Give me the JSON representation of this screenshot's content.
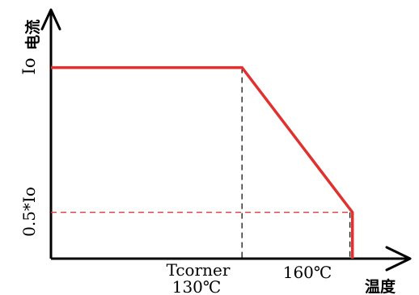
{
  "chart_data": {
    "type": "line",
    "title": "",
    "xlabel": "温度",
    "ylabel": "电流",
    "y_ticks": [
      {
        "label": "Io",
        "value": 1.0
      },
      {
        "label": "0.5*Io",
        "value": 0.5
      }
    ],
    "x_ticks": [
      {
        "label_top": "Tcorner",
        "label_bottom": "130℃",
        "value": 130
      },
      {
        "label_top": "160℃",
        "label_bottom": "",
        "value": 160
      }
    ],
    "xlim": [
      80,
      174
    ],
    "ylim": [
      0.34,
      1.2
    ],
    "grid": false,
    "series": [
      {
        "name": "",
        "color": "#e0312f",
        "points": [
          {
            "x": 80,
            "y": 1.0
          },
          {
            "x": 130,
            "y": 1.0
          },
          {
            "x": 158.9,
            "y": 0.5
          },
          {
            "x": 158.9,
            "y": 0.34
          }
        ]
      }
    ]
  }
}
